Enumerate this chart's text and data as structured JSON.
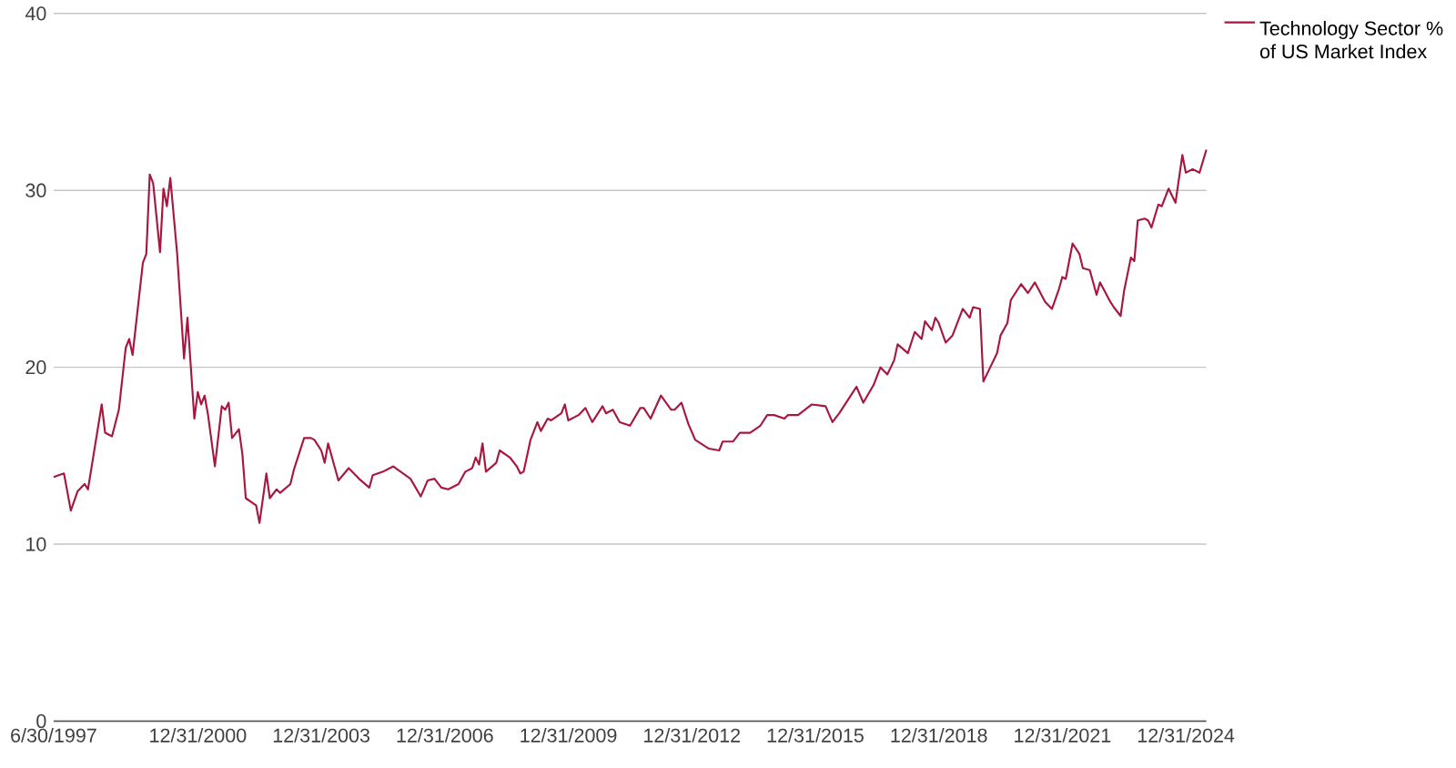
{
  "chart_data": {
    "type": "line",
    "series": [
      {
        "name": "Technology Sector % of US Market Index",
        "color": "#a8173f",
        "x": [
          "1997-06-30",
          "1997-09",
          "1997-11",
          "1998-01",
          "1998-03",
          "1998-04",
          "1998-08",
          "1998-09",
          "1998-11",
          "1999-01",
          "1999-03",
          "1999-04",
          "1999-05",
          "1999-08",
          "1999-09",
          "1999-10",
          "1999-11",
          "2000-01",
          "2000-02",
          "2000-03",
          "2000-04",
          "2000-06",
          "2000-08",
          "2000-09",
          "2000-11",
          "2000-12",
          "2001-01",
          "2001-02",
          "2001-03",
          "2001-05",
          "2001-07",
          "2001-08",
          "2001-09",
          "2001-10",
          "2001-12",
          "2002-01",
          "2002-02",
          "2002-05",
          "2002-06",
          "2002-08",
          "2002-09",
          "2002-11",
          "2002-12",
          "2003-03",
          "2003-04",
          "2003-07",
          "2003-09",
          "2003-10",
          "2003-12",
          "2004-01",
          "2004-02",
          "2004-05",
          "2004-08",
          "2004-11",
          "2005-02",
          "2005-03",
          "2005-06",
          "2005-09",
          "2006-02",
          "2006-05",
          "2006-07",
          "2006-09",
          "2006-11",
          "2007-01",
          "2007-04",
          "2007-06",
          "2007-08",
          "2007-09",
          "2007-10",
          "2007-11",
          "2007-12",
          "2008-03",
          "2008-04",
          "2008-07",
          "2008-09",
          "2008-10",
          "2008-11",
          "2009-01",
          "2009-03",
          "2009-04",
          "2009-06",
          "2009-07",
          "2009-10",
          "2009-11",
          "2009-12",
          "2010-03",
          "2010-05",
          "2010-07",
          "2010-10",
          "2010-11",
          "2011-01",
          "2011-03",
          "2011-06",
          "2011-09",
          "2011-10",
          "2011-12",
          "2012-03",
          "2012-06",
          "2012-07",
          "2012-09",
          "2012-11",
          "2013-01",
          "2013-05",
          "2013-08",
          "2013-09",
          "2013-12",
          "2014-02",
          "2014-05",
          "2014-08",
          "2014-10",
          "2014-12",
          "2015-03",
          "2015-04",
          "2015-07",
          "2015-11",
          "2016-03",
          "2016-05",
          "2016-07",
          "2016-11",
          "2016-12",
          "2017-02",
          "2017-05",
          "2017-07",
          "2017-09",
          "2017-11",
          "2017-12",
          "2018-03",
          "2018-05",
          "2018-07",
          "2018-08",
          "2018-10",
          "2018-11",
          "2018-12",
          "2019-02",
          "2019-04",
          "2019-07",
          "2019-09",
          "2019-10",
          "2019-12",
          "2020-01",
          "2020-03",
          "2020-05",
          "2020-06",
          "2020-08",
          "2020-09",
          "2020-12",
          "2021-02",
          "2021-04",
          "2021-07",
          "2021-09",
          "2021-11",
          "2021-12",
          "2022-01",
          "2022-03",
          "2022-05",
          "2022-06",
          "2022-08",
          "2022-10",
          "2022-11",
          "2023-02",
          "2023-03",
          "2023-05",
          "2023-06",
          "2023-08",
          "2023-09",
          "2023-10",
          "2023-12",
          "2024-01",
          "2024-02",
          "2024-04",
          "2024-05",
          "2024-07",
          "2024-09",
          "2024-11",
          "2024-12",
          "2025-02",
          "2025-04",
          "2025-06"
        ],
        "values": [
          13.8,
          14.0,
          11.9,
          13.0,
          13.4,
          13.1,
          17.9,
          16.3,
          16.1,
          17.6,
          21.1,
          21.6,
          20.7,
          25.9,
          26.4,
          30.9,
          30.4,
          26.5,
          30.1,
          29.1,
          30.7,
          26.4,
          20.5,
          22.8,
          17.1,
          18.6,
          17.9,
          18.4,
          17.3,
          14.4,
          17.8,
          17.6,
          18.0,
          16.0,
          16.5,
          15.1,
          12.6,
          12.2,
          11.2,
          14.0,
          12.6,
          13.1,
          12.9,
          13.4,
          14.2,
          16.0,
          16.0,
          15.9,
          15.3,
          14.6,
          15.7,
          13.6,
          14.3,
          13.7,
          13.2,
          13.9,
          14.1,
          14.4,
          13.7,
          12.7,
          13.6,
          13.7,
          13.2,
          13.1,
          13.4,
          14.1,
          14.3,
          14.9,
          14.5,
          15.7,
          14.1,
          14.6,
          15.3,
          14.9,
          14.4,
          14.0,
          14.1,
          15.9,
          16.9,
          16.4,
          17.1,
          17.0,
          17.4,
          17.9,
          17.0,
          17.3,
          17.7,
          16.9,
          17.8,
          17.4,
          17.6,
          16.9,
          16.7,
          17.7,
          17.7,
          17.1,
          18.4,
          17.6,
          17.6,
          18.0,
          16.8,
          15.9,
          15.4,
          15.3,
          15.8,
          15.8,
          16.3,
          16.3,
          16.7,
          17.3,
          17.3,
          17.1,
          17.3,
          17.3,
          17.9,
          17.8,
          16.9,
          17.4,
          18.6,
          18.9,
          18.0,
          19.0,
          20.0,
          19.6,
          20.4,
          21.3,
          20.8,
          22.0,
          21.6,
          22.6,
          22.1,
          22.8,
          22.5,
          21.4,
          21.8,
          23.3,
          22.8,
          23.4,
          23.3,
          19.2,
          20.0,
          20.8,
          21.8,
          22.5,
          23.8,
          24.7,
          24.2,
          24.8,
          23.7,
          23.3,
          24.4,
          25.1,
          25.0,
          27.0,
          26.4,
          25.6,
          25.5,
          24.1,
          24.8,
          23.7,
          23.4,
          22.9,
          24.3,
          26.2,
          26.0,
          28.3,
          28.4,
          28.3,
          27.9,
          29.2,
          29.1,
          30.1,
          29.3,
          32.0,
          31.0,
          31.2,
          31.0,
          32.3
        ]
      }
    ],
    "xlim": [
      "1997-06-30",
      "2025-06-30"
    ],
    "xticks": [
      {
        "value": "1997-06-30",
        "label": "6/30/1997"
      },
      {
        "value": "2000-12-31",
        "label": "12/31/2000"
      },
      {
        "value": "2003-12-31",
        "label": "12/31/2003"
      },
      {
        "value": "2006-12-31",
        "label": "12/31/2006"
      },
      {
        "value": "2009-12-31",
        "label": "12/31/2009"
      },
      {
        "value": "2012-12-31",
        "label": "12/31/2012"
      },
      {
        "value": "2015-12-31",
        "label": "12/31/2015"
      },
      {
        "value": "2018-12-31",
        "label": "12/31/2018"
      },
      {
        "value": "2021-12-31",
        "label": "12/31/2021"
      },
      {
        "value": "2024-12-31",
        "label": "12/31/2024"
      }
    ],
    "ylim": [
      0,
      40
    ],
    "yticks": [
      0,
      10,
      20,
      30,
      40
    ],
    "grid": "y",
    "legend": "top right",
    "marker": "none",
    "line_style": "solid"
  }
}
